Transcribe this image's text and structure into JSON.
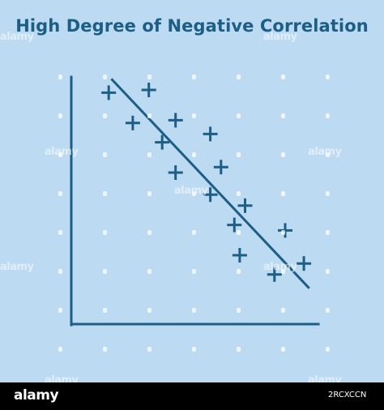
{
  "colors": {
    "background": "#bcdaf2",
    "accent": "#1c5e84",
    "footer": "#000000"
  },
  "chart_data": {
    "type": "scatter",
    "title": "High Degree of Negative Correlation",
    "xlabel": "",
    "ylabel": "",
    "xlim": [
      0,
      10
    ],
    "ylim": [
      0,
      10
    ],
    "grid": false,
    "ticks": false,
    "marker": "plus",
    "points": [
      {
        "x": 1.4,
        "y": 8.4
      },
      {
        "x": 2.9,
        "y": 8.5
      },
      {
        "x": 2.3,
        "y": 7.3
      },
      {
        "x": 3.4,
        "y": 6.6
      },
      {
        "x": 3.9,
        "y": 7.4
      },
      {
        "x": 3.9,
        "y": 5.5
      },
      {
        "x": 5.2,
        "y": 6.9
      },
      {
        "x": 5.6,
        "y": 5.7
      },
      {
        "x": 5.2,
        "y": 4.7
      },
      {
        "x": 6.5,
        "y": 4.3
      },
      {
        "x": 6.1,
        "y": 3.6
      },
      {
        "x": 8.0,
        "y": 3.4
      },
      {
        "x": 6.3,
        "y": 2.5
      },
      {
        "x": 7.6,
        "y": 1.8
      },
      {
        "x": 8.7,
        "y": 2.2
      }
    ],
    "trend_line": {
      "x": [
        1.5,
        8.9
      ],
      "y": [
        8.9,
        1.3
      ]
    }
  },
  "watermark": {
    "text": "alamy"
  },
  "footer": {
    "brand": "alamy",
    "image_id": "2RCXCCN"
  }
}
